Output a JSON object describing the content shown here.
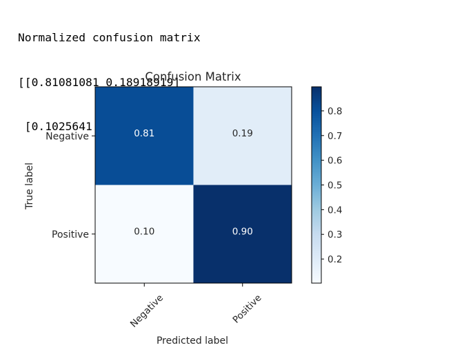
{
  "console_output": {
    "lines": [
      "Normalized confusion matrix",
      "[[0.81081081 0.18918919]",
      " [0.1025641  0.8974359 ]]"
    ]
  },
  "chart_data": {
    "type": "heatmap",
    "title": "Confusion Matrix",
    "xlabel": "Predicted label",
    "ylabel": "True label",
    "x_categories": [
      "Negative",
      "Positive"
    ],
    "y_categories": [
      "Negative",
      "Positive"
    ],
    "values": [
      [
        0.81081081,
        0.18918919
      ],
      [
        0.1025641,
        0.8974359
      ]
    ],
    "cell_labels": [
      [
        "0.81",
        "0.19"
      ],
      [
        "0.10",
        "0.90"
      ]
    ],
    "colormap": "Blues",
    "colorbar": {
      "range": [
        0.1025641,
        0.8974359
      ],
      "ticks": [
        "0.2",
        "0.3",
        "0.4",
        "0.5",
        "0.6",
        "0.7",
        "0.8"
      ]
    },
    "colors": {
      "low": "#f7fbff",
      "high": "#08306b",
      "text_light": "#ffffff",
      "text_dark": "#262626"
    }
  }
}
